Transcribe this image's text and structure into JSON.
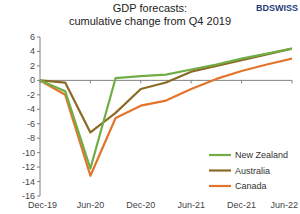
{
  "chart_data": {
    "type": "line",
    "title": "GDP forecasts:",
    "subtitle": "cumulative change from Q4 2019",
    "annotations": [
      "BDSWISS"
    ],
    "categories": [
      "Dec-19",
      null,
      "Jun-20",
      null,
      "Dec-20",
      null,
      "Jun-21",
      null,
      "Dec-21",
      null,
      "Jun-22"
    ],
    "series": [
      {
        "name": "New Zealand",
        "color": "#70ad47",
        "values": [
          0,
          -1.5,
          -12.2,
          0.3,
          0.6,
          0.8,
          1.5,
          2.2,
          3.0,
          3.7,
          4.4
        ]
      },
      {
        "name": "Australia",
        "color": "#8c6a26",
        "values": [
          0,
          -0.3,
          -7.2,
          -4.5,
          -1.2,
          -0.3,
          1.2,
          2.0,
          2.8,
          3.6,
          4.4
        ]
      },
      {
        "name": "Canada",
        "color": "#e2752b",
        "values": [
          0,
          -2.0,
          -13.2,
          -5.2,
          -3.5,
          -2.8,
          -1.2,
          0.2,
          1.3,
          2.2,
          3.0
        ]
      }
    ],
    "ylim": [
      -16,
      6
    ],
    "yticks": [
      -16,
      -14,
      -12,
      -10,
      -8,
      -6,
      -4,
      -2,
      0,
      2,
      4,
      6
    ],
    "grid": false,
    "legend": "lower right"
  }
}
